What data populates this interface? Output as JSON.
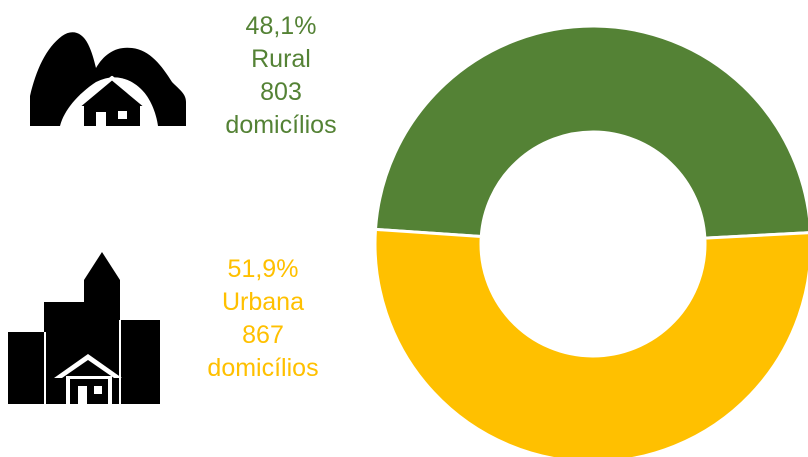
{
  "chart_data": {
    "type": "pie",
    "style": "donut",
    "categories": [
      "Rural",
      "Urbana"
    ],
    "values": [
      48.1,
      51.9
    ],
    "series": [
      {
        "name": "Rural",
        "percent_label": "48,1%",
        "count_label": "803",
        "unit_label": "domicílios",
        "color": "#548235",
        "icon": "rural-hills-house-icon"
      },
      {
        "name": "Urbana",
        "percent_label": "51,9%",
        "count_label": "867",
        "unit_label": "domicílios",
        "color": "#FFC000",
        "icon": "urban-buildings-house-icon"
      }
    ]
  }
}
